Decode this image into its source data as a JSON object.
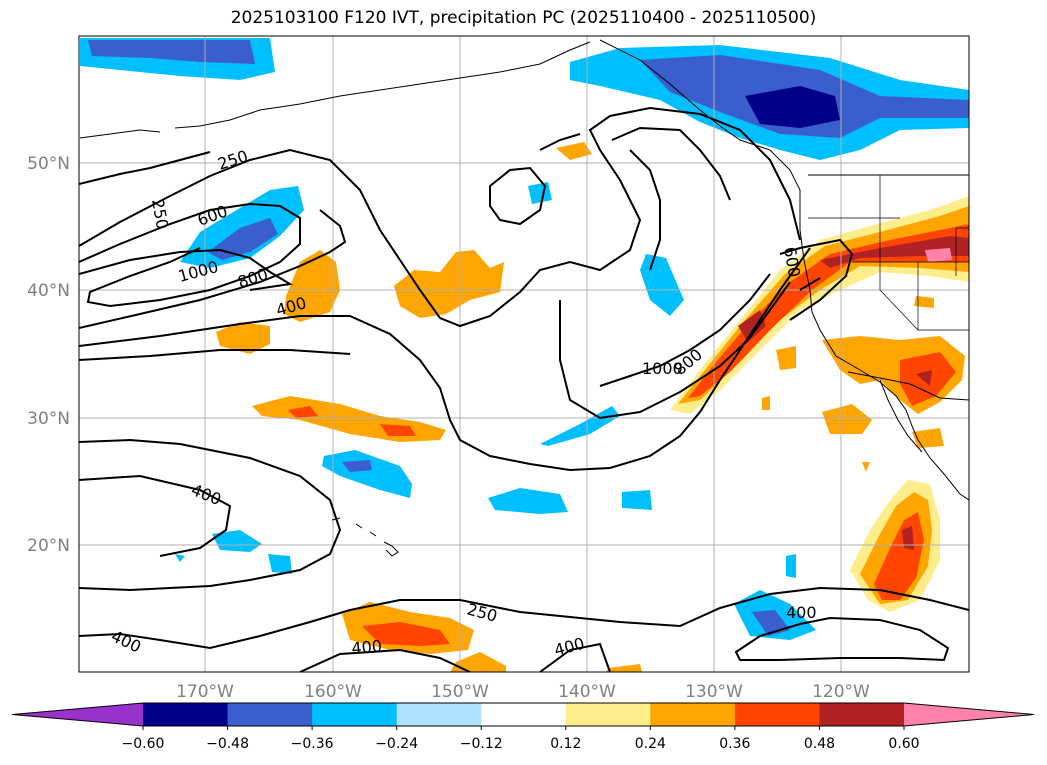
{
  "title": "2025103100 F120 IVT, precipitation PC (2025110400 - 2025110500)",
  "lat_labels": [
    "50°N",
    "40°N",
    "30°N",
    "20°N"
  ],
  "lon_labels": [
    "170°W",
    "160°W",
    "150°W",
    "140°W",
    "130°W",
    "120°W"
  ],
  "contour_labels": [
    "250",
    "250",
    "600",
    "1000",
    "800",
    "400",
    "400",
    "400",
    "250",
    "400",
    "400",
    "1000",
    "800",
    "600",
    "400"
  ],
  "colorbar": {
    "ticks": [
      "−0.60",
      "−0.48",
      "−0.36",
      "−0.24",
      "−0.12",
      "0.12",
      "0.24",
      "0.36",
      "0.48",
      "0.60"
    ],
    "colors": [
      "#9932cc",
      "#00008b",
      "#3a5fcd",
      "#00bfff",
      "#b0e2ff",
      "#ffffff",
      "#ffec8b",
      "#ffa500",
      "#ff4500",
      "#b22222",
      "#ff82ab"
    ]
  },
  "colors": {
    "land_outline": "#000000",
    "grid": "#b0b0b0",
    "contour": "#000000"
  }
}
